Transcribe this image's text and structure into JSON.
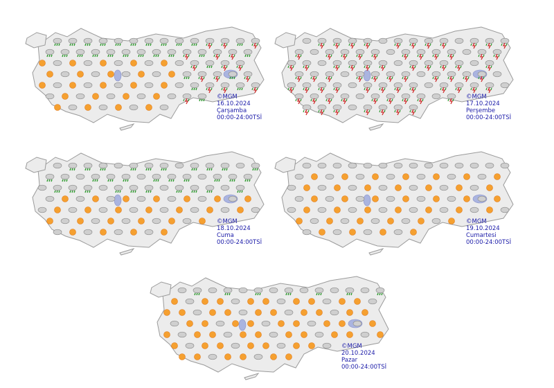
{
  "maps": [
    {
      "copyright": "©MGM",
      "date": "16.10.2024",
      "day": "Çarşamba",
      "time": "00:00-24:00TSİ"
    },
    {
      "copyright": "©MGM",
      "date": "17.10.2024",
      "day": "Perşembe",
      "time": "00:00-24:00TSİ"
    },
    {
      "copyright": "©MGM",
      "date": "18.10.2024",
      "day": "Cuma",
      "time": "00:00-24:00TSİ"
    },
    {
      "copyright": "©MGM",
      "date": "19.10.2024",
      "day": "Cumartesi",
      "time": "00:00-24:00TSİ"
    },
    {
      "copyright": "©MGM",
      "date": "20.10.2024",
      "day": "Pazar",
      "time": "00:00-24:00TSİ"
    }
  ]
}
